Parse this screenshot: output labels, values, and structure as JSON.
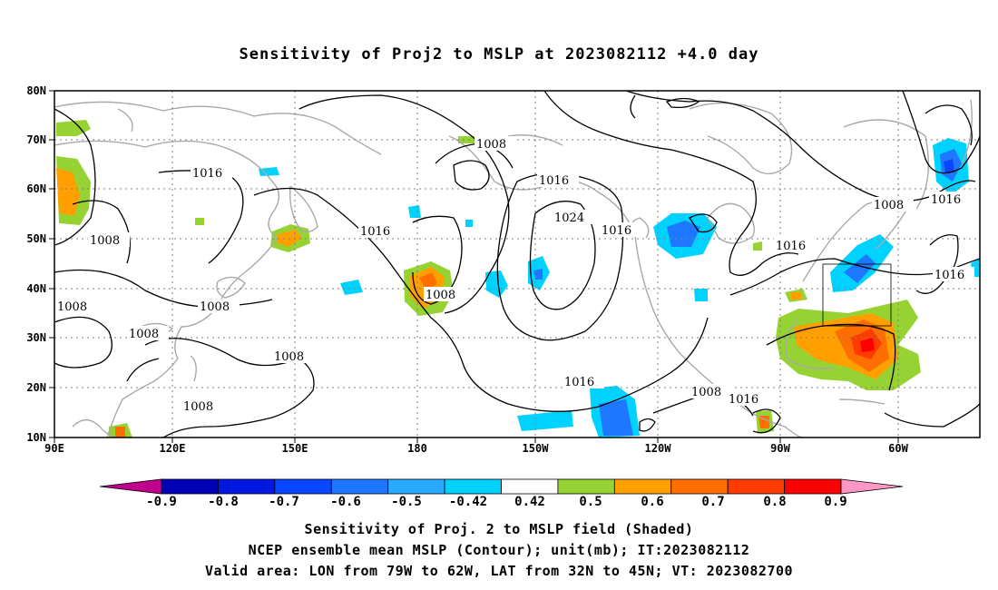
{
  "title": "Sensitivity of Proj2 to MSLP at 2023082112 +4.0 day",
  "captions": [
    "Sensitivity of Proj. 2 to MSLP field (Shaded)",
    "NCEP ensemble mean MSLP (Contour); unit(mb); IT:2023082112",
    "Valid area: LON from 79W to 62W, LAT from 32N to 45N; VT: 2023082700"
  ],
  "map": {
    "lon_labels": [
      "90E",
      "120E",
      "150E",
      "180",
      "150W",
      "120W",
      "90W",
      "60W"
    ],
    "lat_labels": [
      "10N",
      "20N",
      "30N",
      "40N",
      "50N",
      "60N",
      "70N",
      "80N"
    ],
    "lon_range": [
      90,
      325
    ],
    "lat_range": [
      10,
      80
    ],
    "valid_box": {
      "lon_west": -79,
      "lon_east": -62,
      "lat_south": 32,
      "lat_north": 45
    },
    "contour_labels": [
      "1016",
      "1008",
      "1008",
      "1008",
      "1008",
      "1008",
      "1008",
      "1008",
      "1008",
      "1016",
      "1008",
      "1016",
      "1024",
      "1016",
      "1016",
      "1008",
      "1016",
      "1016",
      "1016",
      "1008",
      "1016"
    ]
  },
  "colorbar": {
    "labels": [
      "-0.9",
      "-0.8",
      "-0.7",
      "-0.6",
      "-0.5",
      "-0.42",
      "0.42",
      "0.5",
      "0.6",
      "0.7",
      "0.8",
      "0.9"
    ],
    "colors": [
      "#c0008c",
      "#0000b4",
      "#0018e0",
      "#0a46ff",
      "#1e78ff",
      "#28aaff",
      "#00d2ff",
      "#ffffff",
      "#96d232",
      "#ffa000",
      "#ff6e00",
      "#ff3c00",
      "#ff0000",
      "#ff96c8"
    ]
  }
}
